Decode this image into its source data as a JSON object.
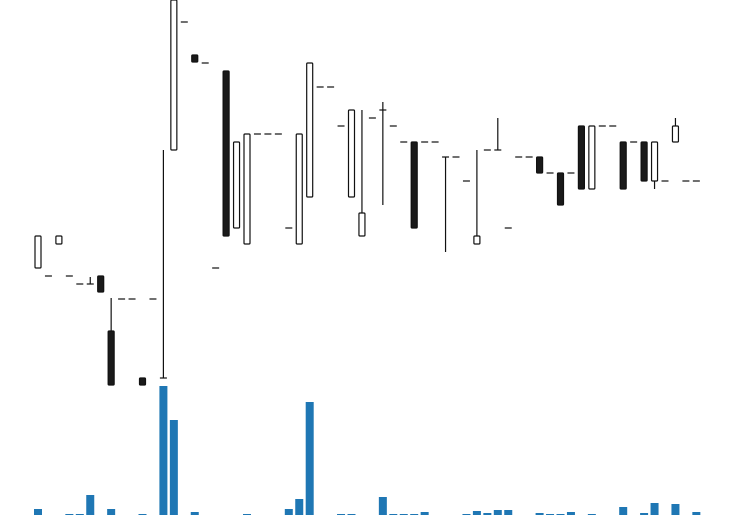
{
  "chart_data": {
    "type": "candlestick",
    "open": [
      122,
      114,
      146,
      114,
      106,
      106,
      114,
      59,
      91,
      91,
      12,
      91,
      12,
      240,
      368,
      335,
      327,
      122,
      319,
      162,
      146,
      256,
      256,
      256,
      162,
      146,
      193,
      303,
      303,
      264,
      193,
      154,
      272,
      280,
      264,
      248,
      248,
      248,
      248,
      233,
      233,
      209,
      146,
      240,
      240,
      162,
      233,
      233,
      233,
      217,
      217,
      217,
      264,
      201,
      264,
      264,
      248,
      248,
      248,
      209,
      209,
      248,
      209,
      209
    ],
    "high": [
      154,
      114,
      154,
      114,
      106,
      113,
      114,
      92,
      91,
      91,
      12,
      91,
      240,
      390,
      368,
      335,
      327,
      122,
      319,
      248,
      256,
      256,
      256,
      256,
      162,
      256,
      327,
      303,
      303,
      264,
      280,
      280,
      272,
      288,
      264,
      248,
      248,
      248,
      248,
      233,
      233,
      209,
      240,
      240,
      272,
      162,
      233,
      233,
      233,
      217,
      217,
      217,
      264,
      264,
      264,
      264,
      248,
      248,
      248,
      248,
      209,
      272,
      209,
      209
    ],
    "low": [
      122,
      114,
      146,
      114,
      106,
      106,
      98,
      5,
      91,
      91,
      5,
      91,
      12,
      240,
      368,
      328,
      327,
      122,
      154,
      162,
      146,
      256,
      256,
      256,
      162,
      146,
      193,
      303,
      303,
      264,
      193,
      154,
      272,
      185,
      264,
      248,
      162,
      248,
      248,
      138,
      233,
      209,
      146,
      240,
      240,
      162,
      233,
      233,
      217,
      217,
      185,
      217,
      201,
      201,
      264,
      264,
      201,
      248,
      209,
      201,
      209,
      248,
      209,
      209
    ],
    "close": [
      154,
      114,
      154,
      114,
      106,
      106,
      98,
      5,
      91,
      91,
      5,
      91,
      12,
      390,
      368,
      328,
      327,
      122,
      154,
      248,
      256,
      256,
      256,
      256,
      162,
      256,
      327,
      303,
      303,
      264,
      280,
      177,
      272,
      280,
      264,
      248,
      162,
      248,
      248,
      233,
      233,
      209,
      154,
      240,
      240,
      162,
      233,
      233,
      217,
      217,
      185,
      217,
      201,
      264,
      264,
      264,
      201,
      248,
      209,
      248,
      209,
      264,
      209,
      209
    ],
    "volume": [
      6,
      0,
      0,
      1,
      1,
      20,
      0,
      6,
      0,
      0,
      1,
      0,
      129,
      95,
      0,
      3,
      0,
      0,
      0,
      0,
      1,
      0,
      0,
      0,
      6,
      16,
      113,
      0,
      0,
      1,
      1,
      0,
      0,
      18,
      1,
      1,
      1,
      3,
      0,
      0,
      0,
      1,
      4,
      2,
      5,
      5,
      0,
      0,
      2,
      1,
      1,
      3,
      0,
      1,
      0,
      0,
      8,
      0,
      2,
      12,
      0,
      11,
      0,
      3
    ],
    "ylim": [
      0,
      390
    ],
    "volume_ylim": [
      0,
      129
    ],
    "up_color": "#ffffff",
    "down_color": "#1a1a1a",
    "line_color": "#111111",
    "volume_color": "#1f77b4"
  }
}
